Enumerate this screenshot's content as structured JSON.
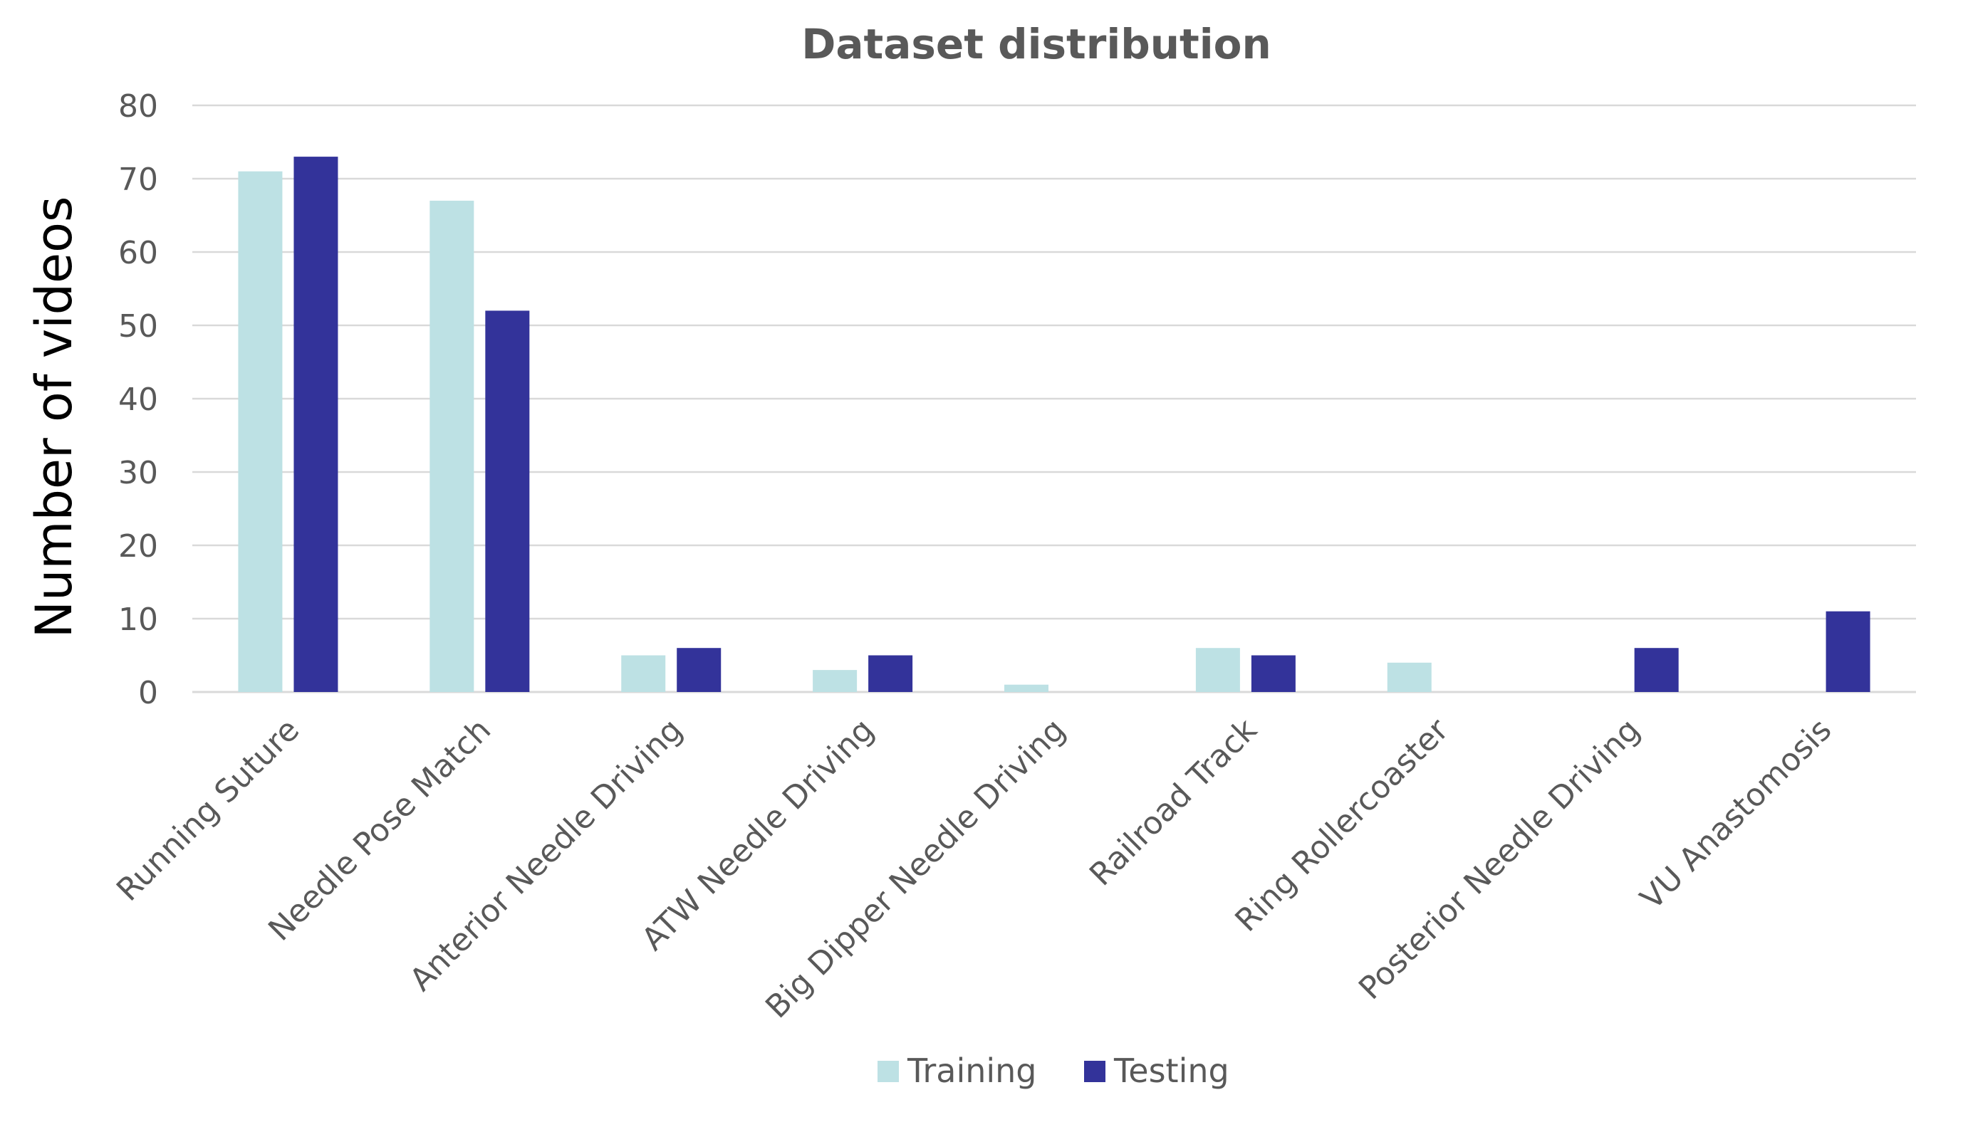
{
  "chart_data": {
    "type": "bar",
    "title": "Dataset distribution",
    "xlabel": "",
    "ylabel": "Number of videos",
    "ylim": [
      0,
      80
    ],
    "yticks": [
      0,
      10,
      20,
      30,
      40,
      50,
      60,
      70,
      80
    ],
    "grid": true,
    "legend_position": "bottom",
    "categories": [
      "Running Suture",
      "Needle Pose Match",
      "Anterior Needle Driving",
      "ATW Needle Driving",
      "Big Dipper Needle Driving",
      "Railroad Track",
      "Ring Rollercoaster",
      "Posterior Needle Driving",
      "VU Anastomosis"
    ],
    "series": [
      {
        "name": "Training",
        "color": "#bde1e4",
        "values": [
          71,
          67,
          5,
          3,
          1,
          6,
          4,
          0,
          0
        ]
      },
      {
        "name": "Testing",
        "color": "#33339a",
        "values": [
          73,
          52,
          6,
          5,
          0,
          5,
          0,
          6,
          11
        ]
      }
    ]
  }
}
